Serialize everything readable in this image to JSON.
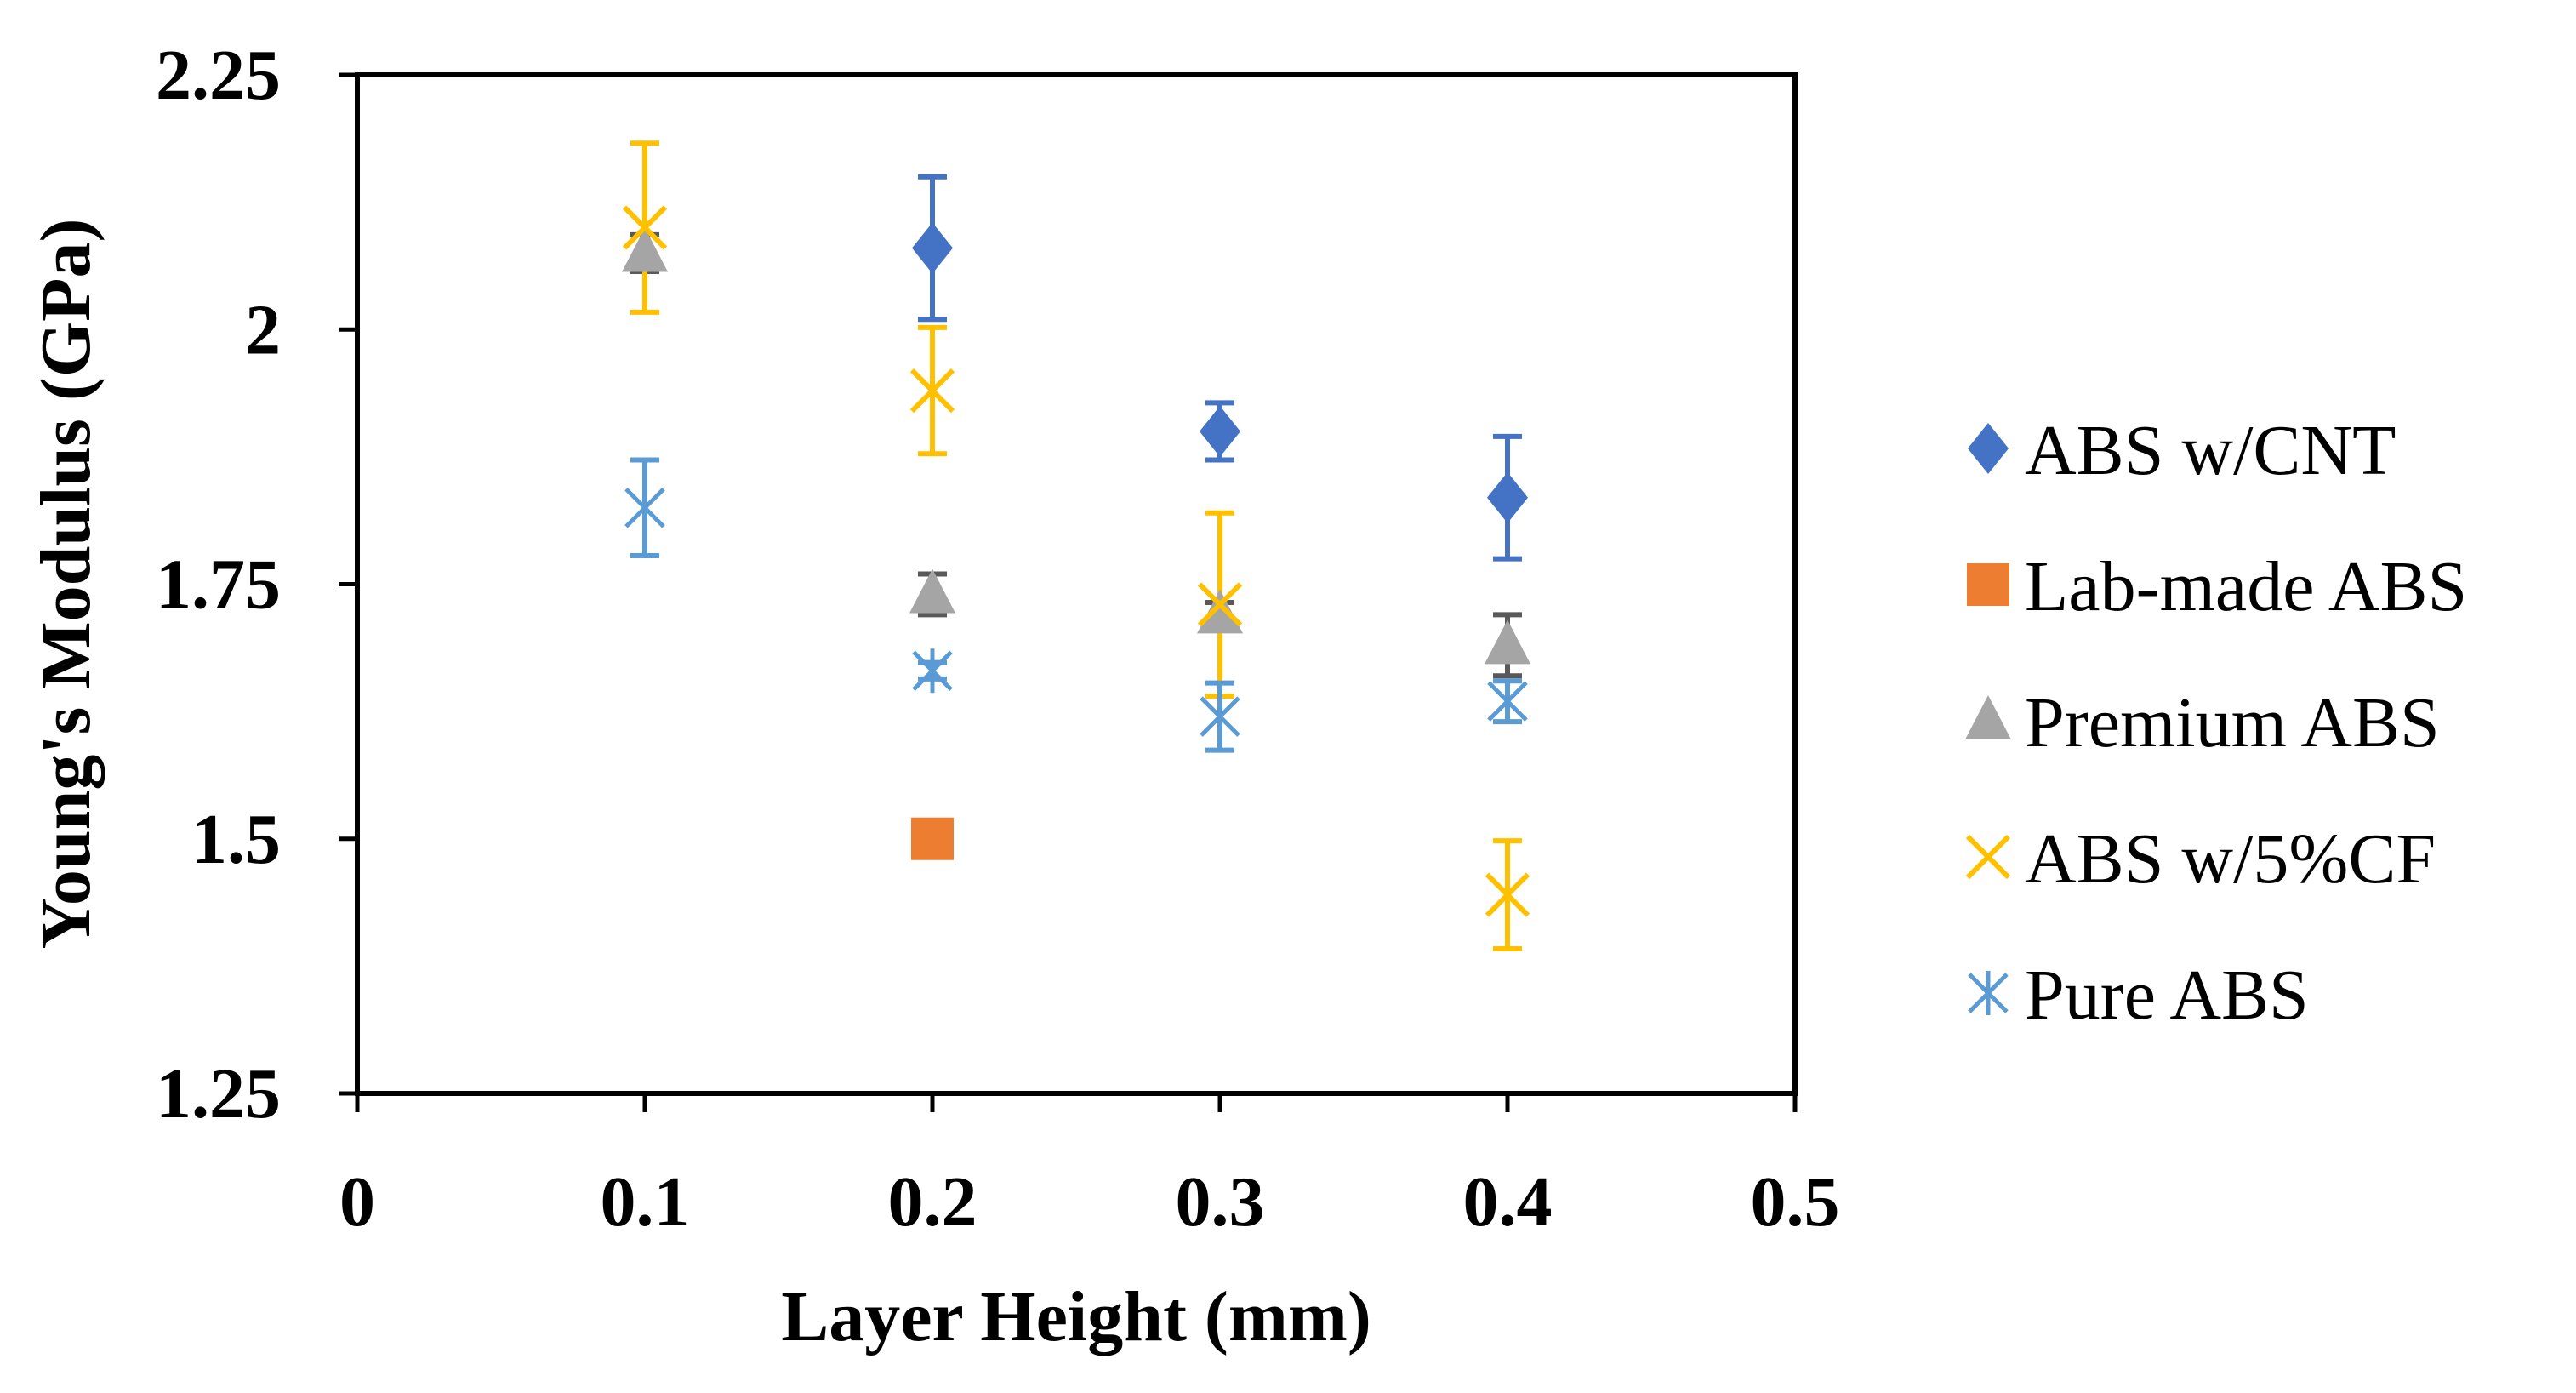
{
  "chart_data": {
    "type": "scatter",
    "title": "",
    "xlabel": "Layer Height (mm)",
    "ylabel": "Young's Modulus (GPa)",
    "xlim": [
      0,
      0.5
    ],
    "ylim": [
      1.25,
      2.25
    ],
    "xticks": [
      0,
      0.1,
      0.2,
      0.3,
      0.4,
      0.5
    ],
    "xtick_labels": [
      "0",
      "0.1",
      "0.2",
      "0.3",
      "0.4",
      "0.5"
    ],
    "yticks": [
      1.25,
      1.5,
      1.75,
      2,
      2.25
    ],
    "ytick_labels": [
      "1.25",
      "1.5",
      "1.75",
      "2",
      "2.25"
    ],
    "grid": false,
    "legend_position": "right",
    "series": [
      {
        "name": "ABS w/CNT",
        "marker": "diamond",
        "color": "#4472C4",
        "points": [
          {
            "x": 0.2,
            "y": 2.08,
            "err": 0.07
          },
          {
            "x": 0.3,
            "y": 1.9,
            "err": 0.028
          },
          {
            "x": 0.4,
            "y": 1.835,
            "err": 0.06
          }
        ]
      },
      {
        "name": "Lab-made ABS",
        "marker": "square",
        "color": "#ED7D31",
        "points": [
          {
            "x": 0.2,
            "y": 1.5,
            "err": 0
          }
        ]
      },
      {
        "name": "Premium ABS",
        "marker": "triangle",
        "color": "#A5A5A5",
        "errColor": "#595959",
        "points": [
          {
            "x": 0.1,
            "y": 2.075,
            "err": 0.018
          },
          {
            "x": 0.2,
            "y": 1.74,
            "err": 0.02
          },
          {
            "x": 0.3,
            "y": 1.72,
            "err": 0.012
          },
          {
            "x": 0.4,
            "y": 1.69,
            "err": 0.03
          }
        ]
      },
      {
        "name": "ABS w/5%CF",
        "marker": "x",
        "color": "#FFC000",
        "points": [
          {
            "x": 0.1,
            "y": 2.1,
            "err": 0.083
          },
          {
            "x": 0.2,
            "y": 1.94,
            "err": 0.062
          },
          {
            "x": 0.3,
            "y": 1.73,
            "err": 0.09
          },
          {
            "x": 0.4,
            "y": 1.445,
            "err": 0.053
          }
        ]
      },
      {
        "name": "Pure ABS",
        "marker": "asterisk",
        "color": "#5B9BD5",
        "points": [
          {
            "x": 0.1,
            "y": 1.825,
            "err": 0.047
          },
          {
            "x": 0.2,
            "y": 1.665,
            "err": 0.008
          },
          {
            "x": 0.3,
            "y": 1.62,
            "err": 0.033
          },
          {
            "x": 0.4,
            "y": 1.635,
            "err": 0.02
          }
        ]
      }
    ]
  }
}
